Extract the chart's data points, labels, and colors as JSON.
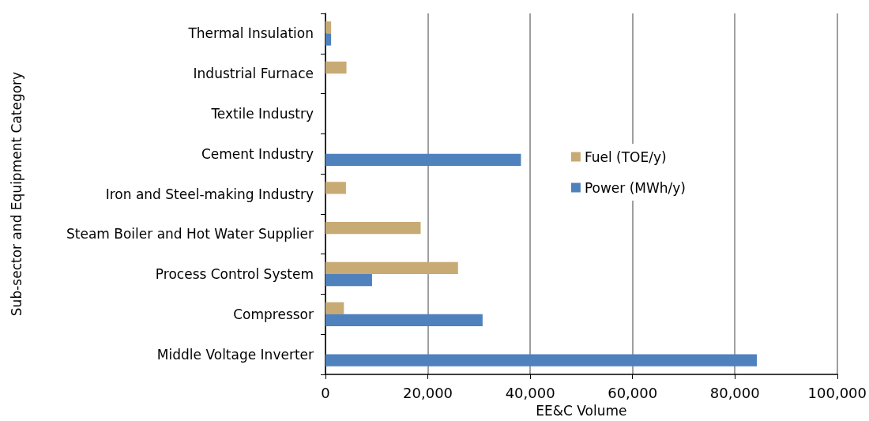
{
  "chart_data": {
    "type": "bar",
    "orientation": "horizontal",
    "xlabel": "EE&C Volume",
    "ylabel": "Sub-sector and Equipment Category",
    "categories": [
      "Thermal Insulation",
      "Industrial Furnace",
      "Textile Industry",
      "Cement Industry",
      "Iron and Steel-making Industry",
      "Steam Boiler and Hot Water Supplier",
      "Process Control System",
      "Compressor",
      "Middle Voltage Inverter"
    ],
    "series": [
      {
        "name": "Fuel (TOE/y)",
        "color": "#c8aa74",
        "values": [
          1100,
          4100,
          null,
          null,
          4000,
          18600,
          25900,
          3600,
          null
        ]
      },
      {
        "name": "Power (MWh/y)",
        "color": "#4f81bd",
        "values": [
          1100,
          null,
          null,
          38200,
          null,
          null,
          9100,
          30700,
          84300
        ]
      }
    ],
    "xlim": [
      0,
      100000
    ],
    "xticks": [
      0,
      {
        "value": 20000,
        "label": "20,000"
      },
      {
        "value": 40000,
        "label": "40,000"
      },
      {
        "value": 60000,
        "label": "60,000"
      },
      {
        "value": 80000,
        "label": "80,000"
      },
      {
        "value": 100000,
        "label": "100,000"
      }
    ],
    "grid": "x",
    "legend": "right"
  }
}
